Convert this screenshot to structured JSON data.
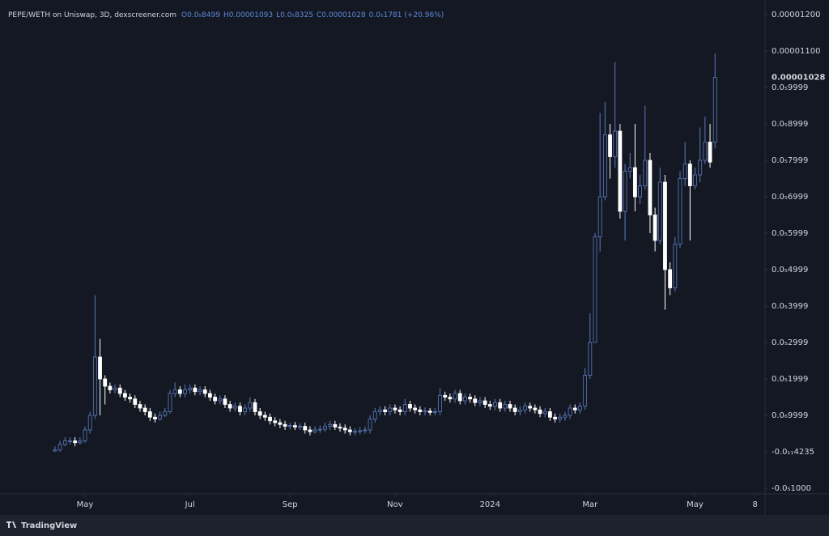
{
  "chart_data": {
    "type": "candlestick",
    "title": "PEPE/WETH on Uniswap, 3D, dexscreener.com",
    "ohlc_legend": [
      "O0.0₅8499",
      "H0.00001093",
      "L0.0₅8325",
      "C0.00001028",
      "0.0₅1781 (+20.96%)"
    ],
    "last_price_label": "0.00001028",
    "footer": "TradingView",
    "up_color": "#5b7bbf",
    "down_color": "#ffffff",
    "grid": false,
    "xlim": [
      -11,
      142
    ],
    "xticks": [
      {
        "value": 6,
        "label": "May"
      },
      {
        "value": 27,
        "label": "Jul"
      },
      {
        "value": 47,
        "label": "Sep"
      },
      {
        "value": 68,
        "label": "Nov"
      },
      {
        "value": 87,
        "label": "2024"
      },
      {
        "value": 107,
        "label": "Mar"
      },
      {
        "value": 128,
        "label": "May"
      },
      {
        "value": 140,
        "label": "8"
      }
    ],
    "ylim": [
      -1.1556e-06,
      1.24e-05
    ],
    "yticks": [
      {
        "value": 1.2e-05,
        "label": "0.00001200"
      },
      {
        "value": 1.1e-05,
        "label": "0.00001100"
      },
      {
        "value": 9.999e-06,
        "label": "0.0₅9999"
      },
      {
        "value": 8.999e-06,
        "label": "0.0₅8999"
      },
      {
        "value": 7.999e-06,
        "label": "0.0₅7999"
      },
      {
        "value": 6.999e-06,
        "label": "0.0₅6999"
      },
      {
        "value": 5.999e-06,
        "label": "0.0₅5999"
      },
      {
        "value": 4.999e-06,
        "label": "0.0₅4999"
      },
      {
        "value": 3.999e-06,
        "label": "0.0₅3999"
      },
      {
        "value": 2.999e-06,
        "label": "0.0₅2999"
      },
      {
        "value": 1.999e-06,
        "label": "0.0₅1999"
      },
      {
        "value": 9.999e-07,
        "label": "0.0₆9999"
      },
      {
        "value": -4.235e-12,
        "label": "-0.0₁₁4235"
      },
      {
        "value": -1e-06,
        "label": "-0.0₅1000"
      }
    ],
    "open": [
      2e-08,
      5e-08,
      2e-07,
      3e-07,
      3e-07,
      2.5e-07,
      3e-07,
      6e-07,
      1e-06,
      2.6e-06,
      2e-06,
      1.8e-06,
      1.7e-06,
      1.75e-06,
      1.6e-06,
      1.5e-06,
      1.45e-06,
      1.3e-06,
      1.2e-06,
      1.1e-06,
      9.5e-07,
      9e-07,
      1e-06,
      1.1e-06,
      1.6e-06,
      1.7e-06,
      1.6e-06,
      1.7e-06,
      1.75e-06,
      1.65e-06,
      1.7e-06,
      1.6e-06,
      1.5e-06,
      1.4e-06,
      1.45e-06,
      1.3e-06,
      1.2e-06,
      1.25e-06,
      1.1e-06,
      1.2e-06,
      1.35e-06,
      1.1e-06,
      1e-06,
      9.5e-07,
      8.5e-07,
      8e-07,
      7.5e-07,
      7e-07,
      7.2e-07,
      6.8e-07,
      7e-07,
      6e-07,
      5.5e-07,
      6e-07,
      6.2e-07,
      7e-07,
      7.5e-07,
      6.8e-07,
      6.5e-07,
      6e-07,
      5.5e-07,
      5.6e-07,
      5.8e-07,
      6e-07,
      9e-07,
      1.1e-06,
      1.15e-06,
      1.1e-06,
      1.2e-06,
      1.15e-06,
      1.1e-06,
      1.3e-06,
      1.2e-06,
      1.15e-06,
      1.1e-06,
      1.12e-06,
      1.08e-06,
      1.1e-06,
      1.55e-06,
      1.5e-06,
      1.45e-06,
      1.6e-06,
      1.4e-06,
      1.5e-06,
      1.45e-06,
      1.35e-06,
      1.4e-06,
      1.3e-06,
      1.25e-06,
      1.35e-06,
      1.2e-06,
      1.3e-06,
      1.2e-06,
      1.1e-06,
      1.15e-06,
      1.25e-06,
      1.2e-06,
      1.15e-06,
      1.05e-06,
      1.1e-06,
      9.5e-07,
      9e-07,
      9.5e-07,
      1e-06,
      1.2e-06,
      1.15e-06,
      1.25e-06,
      2.1e-06,
      3e-06,
      5.9e-06,
      7e-06,
      8.7e-06,
      8.1e-06,
      8.8e-06,
      6.6e-06,
      7.7e-06,
      7.8e-06,
      7e-06,
      7.3e-06,
      8e-06,
      6.5e-06,
      5.8e-06,
      7.4e-06,
      5e-06,
      4.5e-06,
      5.7e-06,
      7.5e-06,
      7.9e-06,
      7.3e-06,
      7.6e-06,
      8e-06,
      8.5e-06,
      8.499e-06
    ],
    "high": [
      1.5e-07,
      3e-07,
      4e-07,
      4e-07,
      4e-07,
      4e-07,
      7e-07,
      1.1e-06,
      4.3e-06,
      3.1e-06,
      2.1e-06,
      1.9e-06,
      1.85e-06,
      1.85e-06,
      1.7e-06,
      1.6e-06,
      1.55e-06,
      1.4e-06,
      1.3e-06,
      1.2e-06,
      1.05e-06,
      1.1e-06,
      1.2e-06,
      1.7e-06,
      1.9e-06,
      1.8e-06,
      1.85e-06,
      1.85e-06,
      1.85e-06,
      1.8e-06,
      1.8e-06,
      1.7e-06,
      1.6e-06,
      1.55e-06,
      1.55e-06,
      1.4e-06,
      1.35e-06,
      1.35e-06,
      1.3e-06,
      1.5e-06,
      1.45e-06,
      1.2e-06,
      1.1e-06,
      1.05e-06,
      9.5e-07,
      9e-07,
      8.5e-07,
      8e-07,
      8.2e-07,
      7.8e-07,
      8e-07,
      7e-07,
      7e-07,
      7.2e-07,
      8e-07,
      8.5e-07,
      8.5e-07,
      7.8e-07,
      7.5e-07,
      7e-07,
      6.5e-07,
      6.8e-07,
      7e-07,
      1e-06,
      1.2e-06,
      1.25e-06,
      1.25e-06,
      1.3e-06,
      1.3e-06,
      1.25e-06,
      1.45e-06,
      1.4e-06,
      1.3e-06,
      1.25e-06,
      1.22e-06,
      1.2e-06,
      1.2e-06,
      1.75e-06,
      1.65e-06,
      1.6e-06,
      1.7e-06,
      1.7e-06,
      1.6e-06,
      1.6e-06,
      1.55e-06,
      1.5e-06,
      1.5e-06,
      1.4e-06,
      1.45e-06,
      1.45e-06,
      1.4e-06,
      1.4e-06,
      1.3e-06,
      1.25e-06,
      1.35e-06,
      1.35e-06,
      1.3e-06,
      1.25e-06,
      1.2e-06,
      1.2e-06,
      1.05e-06,
      1.05e-06,
      1.1e-06,
      1.3e-06,
      1.3e-06,
      1.35e-06,
      2.3e-06,
      3.8e-06,
      6e-06,
      9.3e-06,
      9.6e-06,
      9e-06,
      1.07e-05,
      9e-06,
      7.9e-06,
      8.2e-06,
      9e-06,
      7.6e-06,
      9.5e-06,
      8.2e-06,
      6.7e-06,
      7.8e-06,
      7.6e-06,
      5.2e-06,
      5.9e-06,
      7.7e-06,
      8.5e-06,
      8e-06,
      7.8e-06,
      8.9e-06,
      9.2e-06,
      9e-06,
      1.093e-05
    ],
    "low": [
      0,
      0,
      1.5e-07,
      2e-07,
      1.5e-07,
      2e-07,
      2.5e-07,
      5e-07,
      9e-07,
      1e-06,
      1.3e-06,
      1.6e-06,
      1.6e-06,
      1.5e-06,
      1.4e-06,
      1.35e-06,
      1.2e-06,
      1.1e-06,
      1e-06,
      8.5e-07,
      8e-07,
      8.5e-07,
      9.5e-07,
      1.05e-06,
      1.5e-06,
      1.5e-06,
      1.5e-06,
      1.6e-06,
      1.55e-06,
      1.55e-06,
      1.5e-06,
      1.4e-06,
      1.3e-06,
      1.3e-06,
      1.2e-06,
      1.1e-06,
      1.1e-06,
      1e-06,
      1e-06,
      1.1e-06,
      1e-06,
      9e-07,
      8.5e-07,
      7.5e-07,
      7e-07,
      6.5e-07,
      6e-07,
      6.2e-07,
      6e-07,
      6e-07,
      5e-07,
      4.5e-07,
      5e-07,
      5.2e-07,
      5.5e-07,
      6e-07,
      6e-07,
      5.5e-07,
      5e-07,
      4.5e-07,
      4.5e-07,
      4.8e-07,
      5e-07,
      5e-07,
      8e-07,
      1e-06,
      1e-06,
      1e-06,
      1.05e-06,
      1e-06,
      1e-06,
      1.1e-06,
      1.05e-06,
      1e-06,
      1e-06,
      1e-06,
      1e-06,
      1e-06,
      1.4e-06,
      1.35e-06,
      1.35e-06,
      1.3e-06,
      1.3e-06,
      1.35e-06,
      1.25e-06,
      1.25e-06,
      1.2e-06,
      1.15e-06,
      1.15e-06,
      1.1e-06,
      1.1e-06,
      1.1e-06,
      1e-06,
      1e-06,
      1.05e-06,
      1.1e-06,
      1.05e-06,
      9.5e-07,
      9.5e-07,
      8.5e-07,
      8e-07,
      8e-07,
      8.5e-07,
      9e-07,
      1.05e-06,
      1.05e-06,
      1.15e-06,
      2e-06,
      3e-06,
      5.5e-06,
      6.9e-06,
      7.5e-06,
      7.8e-06,
      6.4e-06,
      5.8e-06,
      7.5e-06,
      6.6e-06,
      6.8e-06,
      7.2e-06,
      6e-06,
      5.5e-06,
      5.7e-06,
      3.9e-06,
      4.3e-06,
      4.4e-06,
      5.6e-06,
      7.3e-06,
      5.8e-06,
      7.2e-06,
      7.4e-06,
      7.9e-06,
      7.8e-06,
      8.325e-06
    ],
    "close": [
      5e-08,
      2e-07,
      3e-07,
      3e-07,
      2.5e-07,
      3e-07,
      6e-07,
      1e-06,
      2.6e-06,
      2e-06,
      1.8e-06,
      1.7e-06,
      1.75e-06,
      1.6e-06,
      1.5e-06,
      1.45e-06,
      1.3e-06,
      1.2e-06,
      1.1e-06,
      9.5e-07,
      9e-07,
      1e-06,
      1.1e-06,
      1.6e-06,
      1.7e-06,
      1.6e-06,
      1.7e-06,
      1.75e-06,
      1.65e-06,
      1.7e-06,
      1.6e-06,
      1.5e-06,
      1.4e-06,
      1.45e-06,
      1.3e-06,
      1.2e-06,
      1.25e-06,
      1.1e-06,
      1.2e-06,
      1.35e-06,
      1.1e-06,
      1e-06,
      9.5e-07,
      8.5e-07,
      8e-07,
      7.5e-07,
      7e-07,
      7.2e-07,
      6.8e-07,
      7e-07,
      6e-07,
      5.5e-07,
      6e-07,
      6.2e-07,
      7e-07,
      7.5e-07,
      6.8e-07,
      6.5e-07,
      6e-07,
      5.5e-07,
      5.6e-07,
      5.8e-07,
      6e-07,
      9e-07,
      1.1e-06,
      1.15e-06,
      1.1e-06,
      1.2e-06,
      1.15e-06,
      1.1e-06,
      1.3e-06,
      1.2e-06,
      1.15e-06,
      1.1e-06,
      1.12e-06,
      1.08e-06,
      1.1e-06,
      1.55e-06,
      1.5e-06,
      1.45e-06,
      1.6e-06,
      1.4e-06,
      1.5e-06,
      1.45e-06,
      1.35e-06,
      1.4e-06,
      1.3e-06,
      1.25e-06,
      1.35e-06,
      1.2e-06,
      1.3e-06,
      1.2e-06,
      1.1e-06,
      1.15e-06,
      1.25e-06,
      1.2e-06,
      1.15e-06,
      1.05e-06,
      1.1e-06,
      9.5e-07,
      9e-07,
      9.5e-07,
      1e-06,
      1.2e-06,
      1.15e-06,
      1.25e-06,
      2.1e-06,
      3e-06,
      5.9e-06,
      7e-06,
      8.7e-06,
      8.1e-06,
      8.8e-06,
      6.6e-06,
      7.7e-06,
      7.8e-06,
      7e-06,
      7.3e-06,
      8e-06,
      6.5e-06,
      5.8e-06,
      7.4e-06,
      5e-06,
      4.5e-06,
      5.7e-06,
      7.5e-06,
      7.9e-06,
      7.3e-06,
      7.6e-06,
      8e-06,
      8.5e-06,
      7.95e-06,
      1.028e-05
    ]
  }
}
